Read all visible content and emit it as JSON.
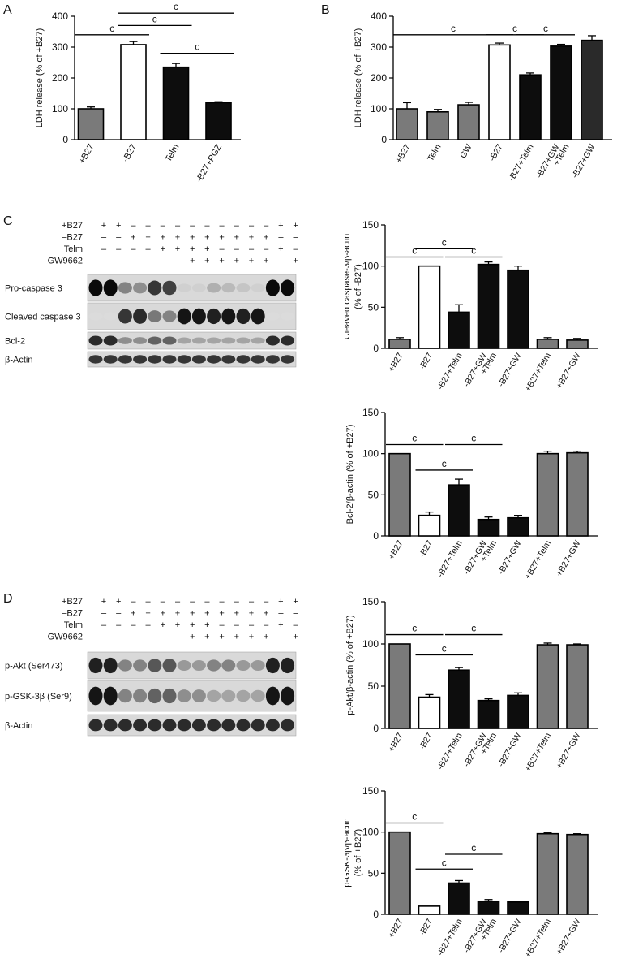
{
  "panel_letters": {
    "A": "A",
    "B": "B",
    "C": "C",
    "D": "D"
  },
  "sig_mark": "c",
  "colors": {
    "gray": "#7a7a7a",
    "white": "#ffffff",
    "black": "#0d0d0d",
    "dark": "#2a2a2a"
  },
  "chart_data": [
    {
      "id": "A",
      "type": "bar",
      "ylabel": [
        "LDH release (% of +B27)"
      ],
      "ylim": [
        0,
        400
      ],
      "yticks": [
        0,
        100,
        200,
        300,
        400
      ],
      "categories": [
        [
          "+B27"
        ],
        [
          "-B27"
        ],
        [
          "Telm"
        ],
        [
          "-B27+PGZ"
        ]
      ],
      "values": [
        100,
        308,
        235,
        120
      ],
      "errors": [
        6,
        10,
        12,
        3
      ],
      "fills": [
        "gray",
        "white",
        "black",
        "black"
      ],
      "significance": [
        {
          "from": 0,
          "to": 1,
          "y": 340
        },
        {
          "from": 1,
          "to": 2,
          "y": 370
        },
        {
          "from": 1,
          "to": 3,
          "y": 410
        },
        {
          "from": 2,
          "to": 3,
          "y": 280
        }
      ]
    },
    {
      "id": "B",
      "type": "bar",
      "ylabel": [
        "LDH release (% of +B27)"
      ],
      "ylim": [
        0,
        400
      ],
      "yticks": [
        0,
        100,
        200,
        300,
        400
      ],
      "categories": [
        [
          "+B27"
        ],
        [
          "Telm"
        ],
        [
          "GW"
        ],
        [
          "-B27"
        ],
        [
          "-B27+Telm"
        ],
        [
          "-B27+GW",
          "+Telm"
        ],
        [
          "-B27+GW"
        ]
      ],
      "values": [
        100,
        90,
        113,
        307,
        210,
        303,
        322
      ],
      "errors": [
        20,
        8,
        8,
        6,
        6,
        6,
        15
      ],
      "fills": [
        "gray",
        "gray",
        "gray",
        "white",
        "black",
        "black",
        "dark"
      ],
      "significance": [
        {
          "from": 0,
          "to": 3,
          "y": 340
        },
        {
          "from": 3,
          "to": 4,
          "y": 340
        },
        {
          "from": 4,
          "to": 5,
          "y": 340
        }
      ]
    },
    {
      "id": "C1",
      "type": "bar",
      "ylabel": [
        "Cleaved caspase-3/β-actin",
        "(% of -B27)"
      ],
      "ylim": [
        0,
        150
      ],
      "yticks": [
        0,
        50,
        100,
        150
      ],
      "categories": [
        [
          "+B27"
        ],
        [
          "-B27"
        ],
        [
          "-B27+Telm"
        ],
        [
          "-B27+GW",
          "+Telm"
        ],
        [
          "-B27+GW"
        ],
        [
          "+B27+Telm"
        ],
        [
          "+B27+GW"
        ]
      ],
      "values": [
        11,
        100,
        44,
        102,
        95,
        11,
        10
      ],
      "errors": [
        2,
        0,
        9,
        3,
        5,
        2,
        2
      ],
      "fills": [
        "gray",
        "white",
        "black",
        "black",
        "black",
        "gray",
        "gray"
      ],
      "significance": [
        {
          "from": 0,
          "to": 1,
          "y": 111
        },
        {
          "from": 1,
          "to": 2,
          "y": 121
        },
        {
          "from": 2,
          "to": 3,
          "y": 111
        }
      ]
    },
    {
      "id": "C2",
      "type": "bar",
      "ylabel": [
        "Bcl-2/β-actin (% of +B27)"
      ],
      "ylim": [
        0,
        150
      ],
      "yticks": [
        0,
        50,
        100,
        150
      ],
      "categories": [
        [
          "+B27"
        ],
        [
          "-B27"
        ],
        [
          "-B27+Telm"
        ],
        [
          "-B27+GW",
          "+Telm"
        ],
        [
          "-B27+GW"
        ],
        [
          "+B27+Telm"
        ],
        [
          "+B27+GW"
        ]
      ],
      "values": [
        100,
        25,
        62,
        20,
        22,
        100,
        101
      ],
      "errors": [
        0,
        4,
        7,
        3,
        3,
        3,
        2
      ],
      "fills": [
        "gray",
        "white",
        "black",
        "black",
        "black",
        "gray",
        "gray"
      ],
      "significance": [
        {
          "from": 0,
          "to": 1,
          "y": 111
        },
        {
          "from": 1,
          "to": 2,
          "y": 80
        },
        {
          "from": 2,
          "to": 3,
          "y": 111
        }
      ]
    },
    {
      "id": "D1",
      "type": "bar",
      "ylabel": [
        "p-Akt/β-actin (% of +B27)"
      ],
      "ylim": [
        0,
        150
      ],
      "yticks": [
        0,
        50,
        100,
        150
      ],
      "categories": [
        [
          "+B27"
        ],
        [
          "-B27"
        ],
        [
          "-B27+Telm"
        ],
        [
          "-B27+GW",
          "+Telm"
        ],
        [
          "-B27+GW"
        ],
        [
          "+B27+Telm"
        ],
        [
          "+B27+GW"
        ]
      ],
      "values": [
        100,
        37,
        69,
        33,
        39,
        99,
        99
      ],
      "errors": [
        0,
        3,
        3,
        2,
        3,
        2,
        1
      ],
      "fills": [
        "gray",
        "white",
        "black",
        "black",
        "black",
        "gray",
        "gray"
      ],
      "significance": [
        {
          "from": 0,
          "to": 1,
          "y": 111
        },
        {
          "from": 1,
          "to": 2,
          "y": 87
        },
        {
          "from": 2,
          "to": 3,
          "y": 111
        }
      ]
    },
    {
      "id": "D2",
      "type": "bar",
      "ylabel": [
        "p-GSK-3β/β-actin",
        "(% of +B27)"
      ],
      "ylim": [
        0,
        150
      ],
      "yticks": [
        0,
        50,
        100,
        150
      ],
      "categories": [
        [
          "+B27"
        ],
        [
          "-B27"
        ],
        [
          "-B27+Telm"
        ],
        [
          "-B27+GW",
          "+Telm"
        ],
        [
          "-B27+GW"
        ],
        [
          "+B27+Telm"
        ],
        [
          "+B27+GW"
        ]
      ],
      "values": [
        100,
        10,
        38,
        16,
        15,
        98,
        97
      ],
      "errors": [
        0,
        0,
        3,
        2,
        1,
        1,
        1
      ],
      "fills": [
        "gray",
        "white",
        "black",
        "black",
        "black",
        "gray",
        "gray"
      ],
      "significance": [
        {
          "from": 0,
          "to": 1,
          "y": 111
        },
        {
          "from": 1,
          "to": 2,
          "y": 55
        },
        {
          "from": 2,
          "to": 3,
          "y": 73
        }
      ]
    }
  ],
  "blots": [
    {
      "id": "C",
      "conditions": [
        {
          "label": "+B27",
          "signs": [
            "+",
            "+",
            "–",
            "–",
            "–",
            "–",
            "–",
            "–",
            "–",
            "–",
            "–",
            "–",
            "+",
            "+"
          ]
        },
        {
          "label": "–B27",
          "signs": [
            "–",
            "–",
            "+",
            "+",
            "+",
            "+",
            "+",
            "+",
            "+",
            "+",
            "+",
            "+",
            "–",
            "–"
          ]
        },
        {
          "label": "Telm",
          "signs": [
            "–",
            "–",
            "–",
            "–",
            "+",
            "+",
            "+",
            "+",
            "–",
            "–",
            "–",
            "–",
            "+",
            "–"
          ]
        },
        {
          "label": "GW9662",
          "signs": [
            "–",
            "–",
            "–",
            "–",
            "–",
            "–",
            "+",
            "+",
            "+",
            "+",
            "+",
            "+",
            "–",
            "+"
          ]
        }
      ],
      "strips": [
        {
          "label": "Pro-caspase 3",
          "intensity": [
            1,
            1,
            0.45,
            0.4,
            0.8,
            0.75,
            0.1,
            0.1,
            0.25,
            0.2,
            0.15,
            0.1,
            1,
            1
          ]
        },
        {
          "label": "Cleaved caspase 3",
          "intensity": [
            0.05,
            0.05,
            0.8,
            0.85,
            0.5,
            0.45,
            0.95,
            0.95,
            0.9,
            0.95,
            0.9,
            0.95,
            0.05,
            0.05
          ]
        },
        {
          "label": "Bcl-2",
          "intensity": [
            0.85,
            0.85,
            0.4,
            0.4,
            0.6,
            0.6,
            0.3,
            0.3,
            0.3,
            0.3,
            0.3,
            0.3,
            0.85,
            0.85
          ]
        },
        {
          "label": "β-Actin",
          "intensity": [
            0.8,
            0.8,
            0.8,
            0.8,
            0.8,
            0.8,
            0.8,
            0.8,
            0.8,
            0.8,
            0.8,
            0.8,
            0.8,
            0.8
          ]
        }
      ]
    },
    {
      "id": "D",
      "conditions": [
        {
          "label": "+B27",
          "signs": [
            "+",
            "+",
            "–",
            "–",
            "–",
            "–",
            "–",
            "–",
            "–",
            "–",
            "–",
            "–",
            "+",
            "+"
          ]
        },
        {
          "label": "–B27",
          "signs": [
            "–",
            "–",
            "+",
            "+",
            "+",
            "+",
            "+",
            "+",
            "+",
            "+",
            "+",
            "+",
            "–",
            "–"
          ]
        },
        {
          "label": "Telm",
          "signs": [
            "–",
            "–",
            "–",
            "–",
            "+",
            "+",
            "+",
            "+",
            "–",
            "–",
            "–",
            "–",
            "+",
            "–"
          ]
        },
        {
          "label": "GW9662",
          "signs": [
            "–",
            "–",
            "–",
            "–",
            "–",
            "–",
            "+",
            "+",
            "+",
            "+",
            "+",
            "+",
            "–",
            "+"
          ]
        }
      ],
      "strips": [
        {
          "label": "p-Akt (Ser473)",
          "intensity": [
            0.9,
            0.9,
            0.45,
            0.45,
            0.65,
            0.65,
            0.35,
            0.35,
            0.45,
            0.45,
            0.35,
            0.35,
            0.9,
            0.9
          ]
        },
        {
          "label": "p-GSK-3β (Ser9)",
          "intensity": [
            0.95,
            0.95,
            0.45,
            0.45,
            0.6,
            0.6,
            0.4,
            0.4,
            0.3,
            0.3,
            0.3,
            0.3,
            0.95,
            0.95
          ]
        },
        {
          "label": "β-Actin",
          "intensity": [
            0.85,
            0.85,
            0.85,
            0.85,
            0.85,
            0.85,
            0.85,
            0.85,
            0.85,
            0.85,
            0.85,
            0.85,
            0.85,
            0.85
          ]
        }
      ]
    }
  ]
}
